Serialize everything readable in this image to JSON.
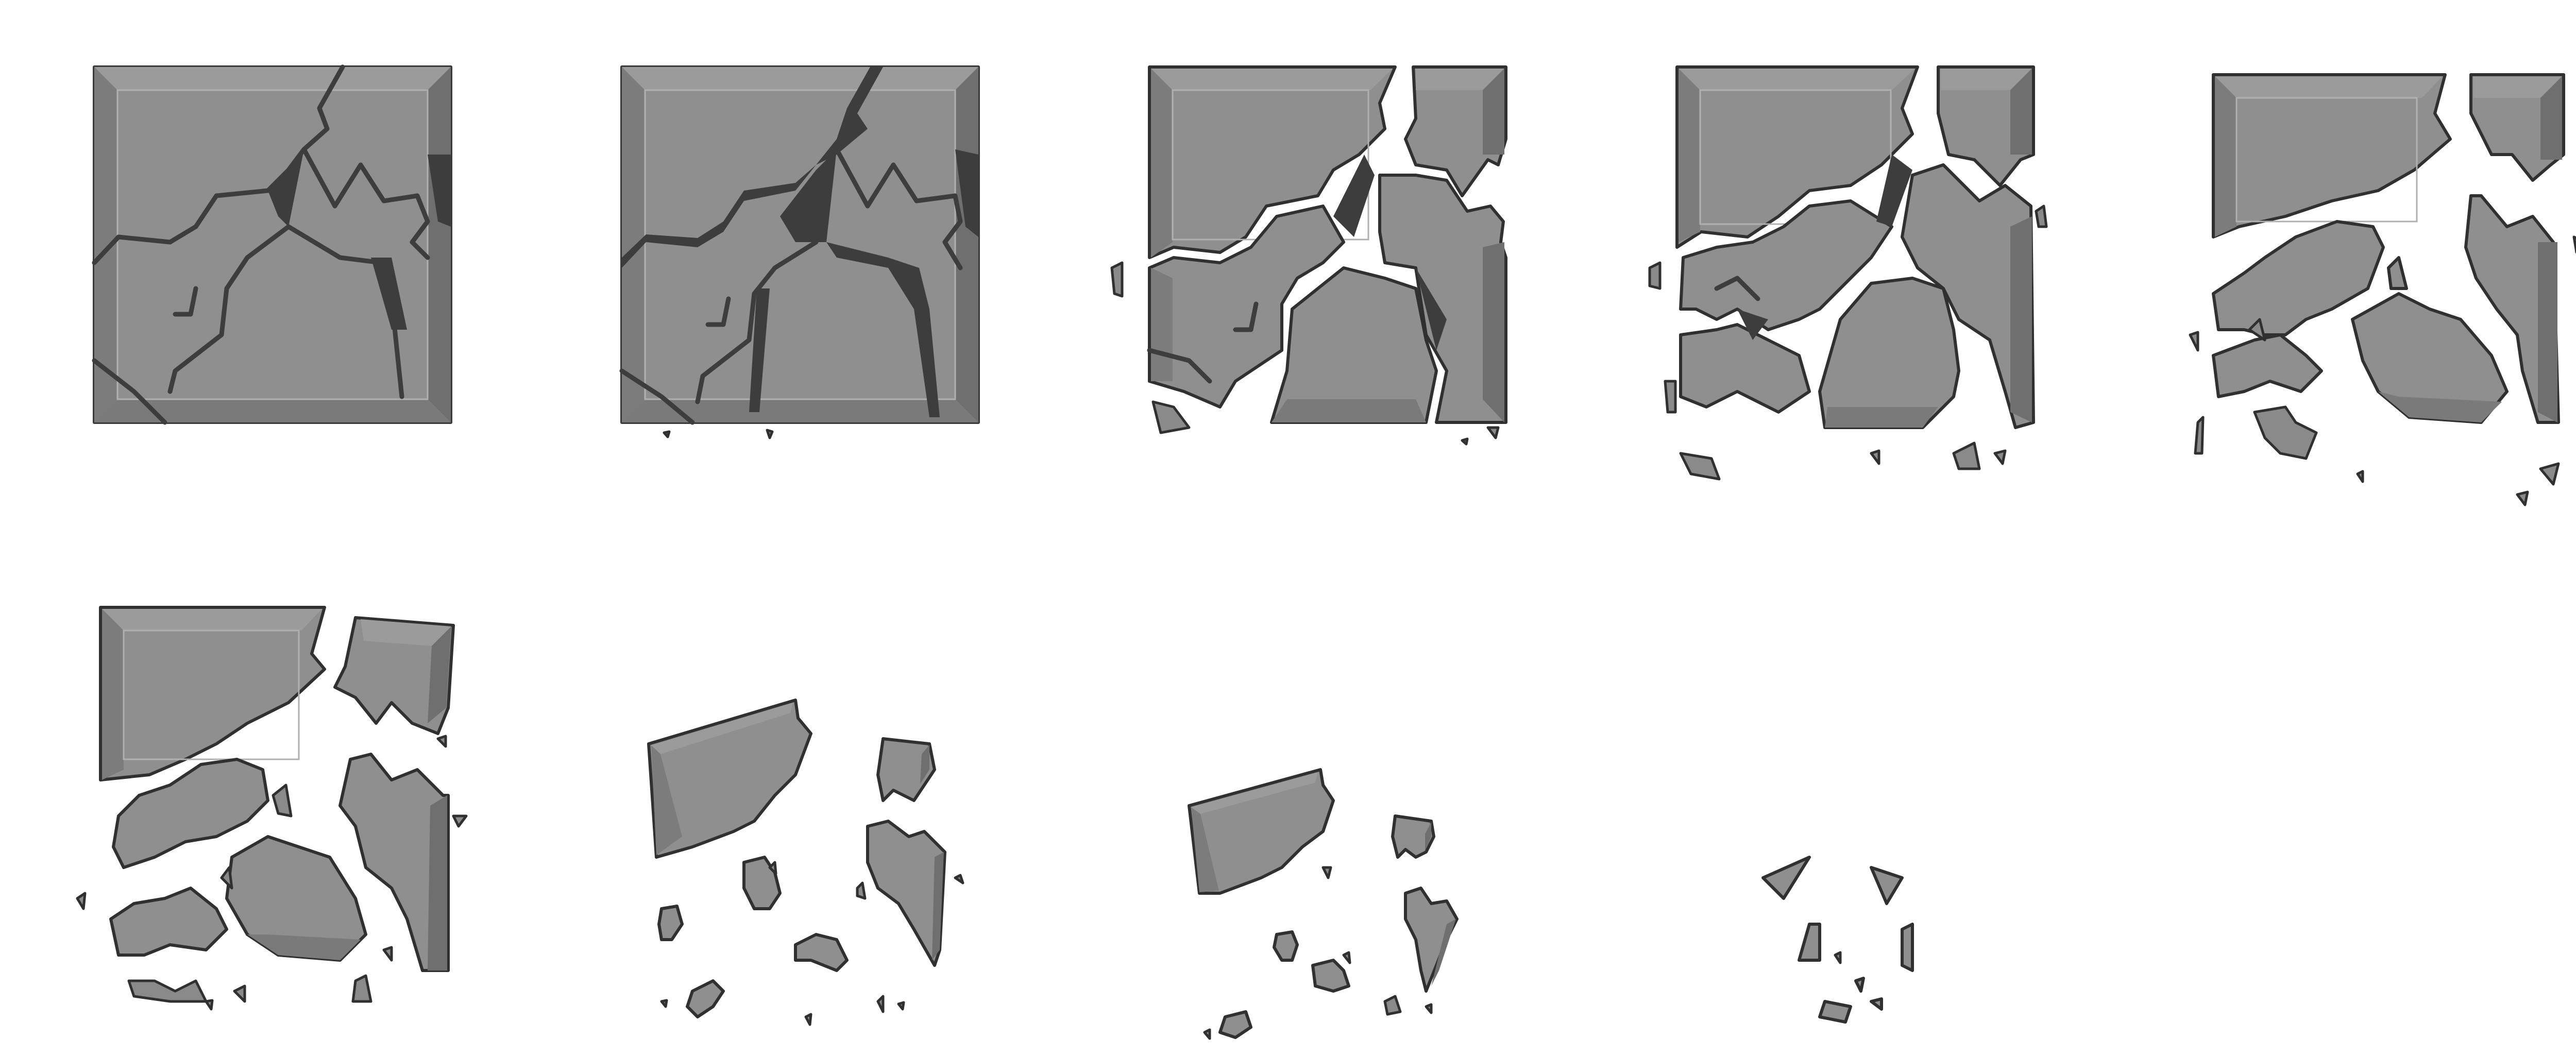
{
  "spritesheet": {
    "frame_count": 9,
    "columns": 5,
    "rows": 2,
    "frames": [
      {
        "index": 1,
        "stage": "cracked"
      },
      {
        "index": 2,
        "stage": "cracked-deeper"
      },
      {
        "index": 3,
        "stage": "splitting"
      },
      {
        "index": 4,
        "stage": "breaking"
      },
      {
        "index": 5,
        "stage": "breaking-apart"
      },
      {
        "index": 6,
        "stage": "shattering"
      },
      {
        "index": 7,
        "stage": "falling-pieces"
      },
      {
        "index": 8,
        "stage": "falling-pieces-late"
      },
      {
        "index": 9,
        "stage": "last-fragments"
      }
    ]
  },
  "colors": {
    "background": "#ffffff",
    "stone_face": "#8f8f8f",
    "stone_bevel": "#7c7c7c",
    "stone_highlight": "#b0b0b0",
    "crack": "#3d3d3d",
    "outline": "#303030"
  }
}
